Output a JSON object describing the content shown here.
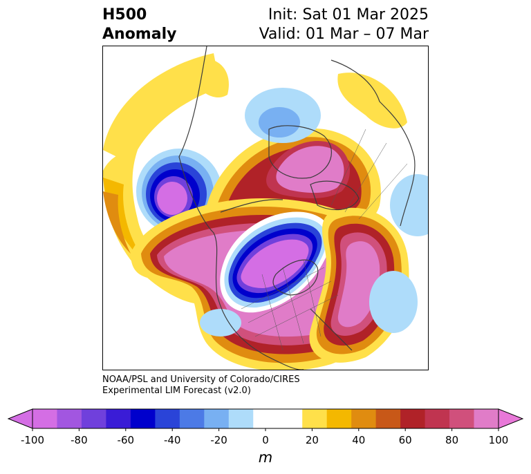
{
  "title": {
    "left_line1": "H500",
    "left_line2": "Anomaly",
    "right_line1": "Init: Sat 01 Mar 2025",
    "right_line2": "Valid: 01 Mar – 07 Mar"
  },
  "credit": {
    "line1": "NOAA/PSL and University of Colorado/CIRES",
    "line2": "Experimental LIM Forecast (v2.0)"
  },
  "colorbar": {
    "unit": "m",
    "ticks": [
      "-100",
      "-80",
      "-60",
      "-40",
      "-20",
      "0",
      "20",
      "40",
      "60",
      "80",
      "100"
    ],
    "colors": [
      "#d46ee4",
      "#a256e0",
      "#7040dc",
      "#3a1cd6",
      "#0000cc",
      "#2a44d8",
      "#4c7ae6",
      "#78b0f2",
      "#aedcfa",
      "#ffffff",
      "#ffffff",
      "#ffe04a",
      "#f4b800",
      "#e08c10",
      "#c85818",
      "#b02228",
      "#c03450",
      "#d0507c",
      "#e07cc8"
    ],
    "under_color": "#d46ee4",
    "over_color": "#e878d8"
  },
  "map": {
    "field": "500 hPa geopotential height anomaly",
    "projection": "north polar stereographic",
    "features": [
      {
        "name": "trough-hudson-bay",
        "sign": "negative",
        "min_m": -100
      },
      {
        "name": "low-north-pacific",
        "sign": "negative",
        "min_m": -100
      },
      {
        "name": "ridge-arctic",
        "sign": "positive",
        "max_m": 100
      },
      {
        "name": "ridge-north-atlantic",
        "sign": "positive",
        "max_m": 100
      },
      {
        "name": "ridge-north-pacific",
        "sign": "positive",
        "max_m": 100
      },
      {
        "name": "weak-low-siberia",
        "sign": "negative",
        "min_m": -40
      }
    ]
  }
}
